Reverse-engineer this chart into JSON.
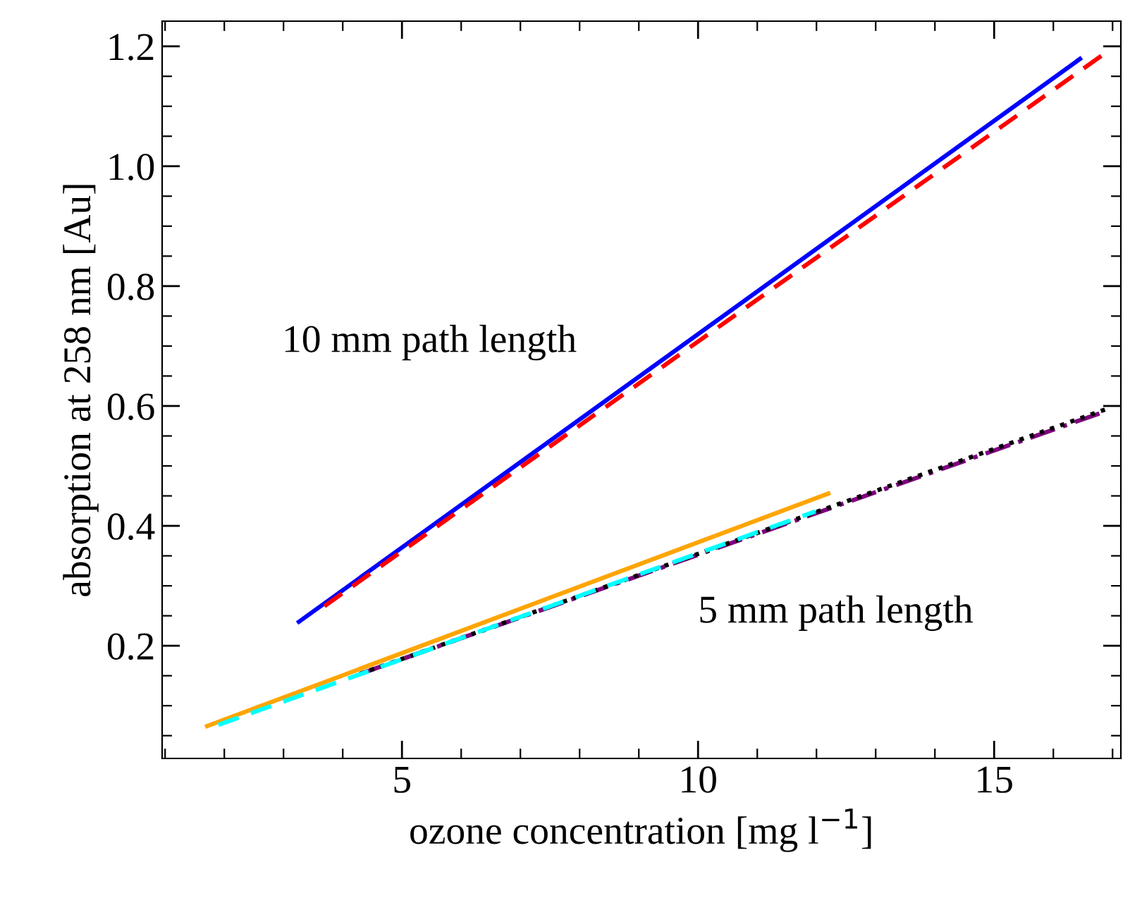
{
  "chart_data": {
    "type": "line",
    "xlabel": "ozone concentration [mg l$^{−1}$]",
    "ylabel": "absorption at 258 nm [Au]",
    "xlim": [
      0.95,
      17.14
    ],
    "ylim": [
      0.012,
      1.242
    ],
    "xticks": [
      {
        "value": 1,
        "label": null
      },
      {
        "value": 2,
        "label": null
      },
      {
        "value": 3,
        "label": null
      },
      {
        "value": 4,
        "label": null
      },
      5,
      {
        "value": 6,
        "label": null
      },
      {
        "value": 7,
        "label": null
      },
      {
        "value": 8,
        "label": null
      },
      {
        "value": 9,
        "label": null
      },
      10,
      {
        "value": 11,
        "label": null
      },
      {
        "value": 12,
        "label": null
      },
      {
        "value": 13,
        "label": null
      },
      {
        "value": 14,
        "label": null
      },
      15,
      {
        "value": 16,
        "label": null
      },
      {
        "value": 17,
        "label": null
      }
    ],
    "yticks": [
      {
        "value": 0.05,
        "label": null
      },
      {
        "value": 0.1,
        "label": null
      },
      {
        "value": 0.15,
        "label": null
      },
      {
        "value": 0.2,
        "label": "0.2"
      },
      {
        "value": 0.25,
        "label": null
      },
      {
        "value": 0.3,
        "label": null
      },
      {
        "value": 0.35,
        "label": null
      },
      {
        "value": 0.4,
        "label": "0.4"
      },
      {
        "value": 0.45,
        "label": null
      },
      {
        "value": 0.5,
        "label": null
      },
      {
        "value": 0.55,
        "label": null
      },
      {
        "value": 0.6,
        "label": "0.6"
      },
      {
        "value": 0.65,
        "label": null
      },
      {
        "value": 0.7,
        "label": null
      },
      {
        "value": 0.75,
        "label": null
      },
      {
        "value": 0.8,
        "label": "0.8"
      },
      {
        "value": 0.85,
        "label": null
      },
      {
        "value": 0.9,
        "label": null
      },
      {
        "value": 0.95,
        "label": null
      },
      {
        "value": 1.0,
        "label": "1.0"
      },
      {
        "value": 1.05,
        "label": null
      },
      {
        "value": 1.1,
        "label": null
      },
      {
        "value": 1.15,
        "label": null
      },
      {
        "value": 1.2,
        "label": "1.2"
      }
    ],
    "grid": false,
    "legend": false,
    "series": [
      {
        "color": "#0000ff",
        "line_style": "solid",
        "x": [
          3.26,
          16.45
        ],
        "values": [
          0.24,
          1.179
        ]
      },
      {
        "color": "#ff0000",
        "line_style": "dashed",
        "x": [
          3.69,
          16.81
        ],
        "values": [
          0.266,
          1.184
        ]
      },
      {
        "color": "#ffa500",
        "line_style": "solid",
        "x": [
          1.71,
          12.2
        ],
        "values": [
          0.066,
          0.454
        ]
      },
      {
        "color": "#800080",
        "line_style": "dashdot",
        "x": [
          4.29,
          16.79
        ],
        "values": [
          0.153,
          0.588
        ]
      },
      {
        "color": "#000000",
        "line_style": "dotted",
        "x": [
          4.29,
          16.9
        ],
        "values": [
          0.153,
          0.595
        ]
      },
      {
        "color": "#00ffff",
        "line_style": "dashed",
        "x": [
          1.9,
          11.98
        ],
        "values": [
          0.068,
          0.424
        ]
      }
    ],
    "annotations": [
      "10 mm path length",
      "5 mm path length"
    ]
  }
}
